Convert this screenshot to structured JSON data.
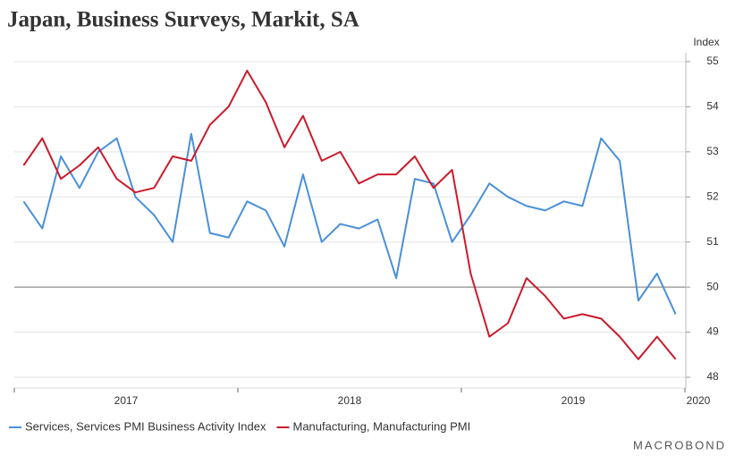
{
  "chart_data": {
    "type": "line",
    "title": "Japan, Business Surveys, Markit, SA",
    "y_axis_label": "Index",
    "categories": [
      null,
      null,
      null,
      null,
      null,
      null,
      null,
      null,
      null,
      null,
      null,
      null,
      null,
      null,
      null,
      null,
      null,
      null,
      null,
      null,
      null,
      null,
      null,
      null,
      null,
      null,
      null,
      null,
      null,
      null,
      null,
      null,
      null,
      null,
      null,
      null
    ],
    "year_labels": [
      "2017",
      "2018",
      "2019",
      "2020"
    ],
    "series": [
      {
        "name": "Services, Services PMI Business Activity Index",
        "color": "#4a90d9",
        "values": [
          51.9,
          51.3,
          52.9,
          52.2,
          53.0,
          53.3,
          52.0,
          51.6,
          51.0,
          53.4,
          51.2,
          51.1,
          51.9,
          51.7,
          50.9,
          52.5,
          51.0,
          51.4,
          51.3,
          51.5,
          50.2,
          52.4,
          52.3,
          51.0,
          51.6,
          52.3,
          52.0,
          51.8,
          51.7,
          51.9,
          51.8,
          53.3,
          52.8,
          49.7,
          50.3,
          49.4
        ]
      },
      {
        "name": "Manufacturing, Manufacturing PMI",
        "color": "#cc1a2b",
        "values": [
          52.7,
          53.3,
          52.4,
          52.7,
          53.1,
          52.4,
          52.1,
          52.2,
          52.9,
          52.8,
          53.6,
          54.0,
          54.8,
          54.1,
          53.1,
          53.8,
          52.8,
          53.0,
          52.3,
          52.5,
          52.5,
          52.9,
          52.2,
          52.6,
          50.3,
          48.9,
          49.2,
          50.2,
          49.8,
          49.3,
          49.4,
          49.3,
          48.9,
          48.4,
          48.9,
          48.4
        ]
      }
    ],
    "ylim": [
      48,
      55
    ],
    "yticks": [
      48,
      49,
      50,
      51,
      52,
      53,
      54,
      55
    ],
    "reference_line": 50,
    "grid": true,
    "legend": "bottom-left",
    "source": "MACROBOND"
  }
}
